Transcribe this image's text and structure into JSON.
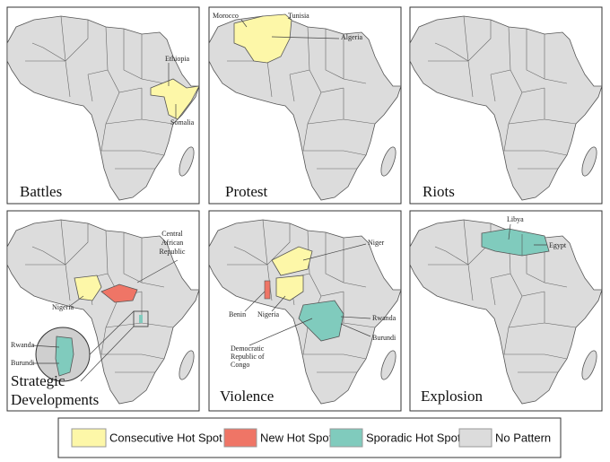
{
  "panels": [
    {
      "title": [
        "Battles"
      ],
      "labels": [
        [
          "Ethiopia"
        ],
        [
          "Somalia"
        ]
      ]
    },
    {
      "title": [
        "Protest"
      ],
      "labels": [
        [
          "Morocco"
        ],
        [
          "Tunisia"
        ],
        [
          "Algeria"
        ]
      ]
    },
    {
      "title": [
        "Riots"
      ],
      "labels": []
    },
    {
      "title": [
        "Strategic",
        "Developments"
      ],
      "labels": [
        [
          "Central",
          "African",
          "Republic"
        ],
        [
          "Nigeria"
        ],
        [
          "Rwanda"
        ],
        [
          "Burundi"
        ]
      ]
    },
    {
      "title": [
        "Violence"
      ],
      "labels": [
        [
          "Niger"
        ],
        [
          "Benin"
        ],
        [
          "Nigeria"
        ],
        [
          "Rwanda"
        ],
        [
          "Burundi"
        ],
        [
          "Democratic",
          "Republic of",
          "Congo"
        ]
      ]
    },
    {
      "title": [
        "Explosion"
      ],
      "labels": [
        [
          "Libya"
        ],
        [
          "Egypt"
        ]
      ]
    }
  ],
  "legend": [
    {
      "label": "Consecutive Hot Spot",
      "color": "#fdf7a8"
    },
    {
      "label": "New Hot Spot",
      "color": "#ef7566"
    },
    {
      "label": "Sporadic Hot Spot",
      "color": "#80cbbd"
    },
    {
      "label": "No Pattern",
      "color": "#dcdcdc"
    }
  ]
}
